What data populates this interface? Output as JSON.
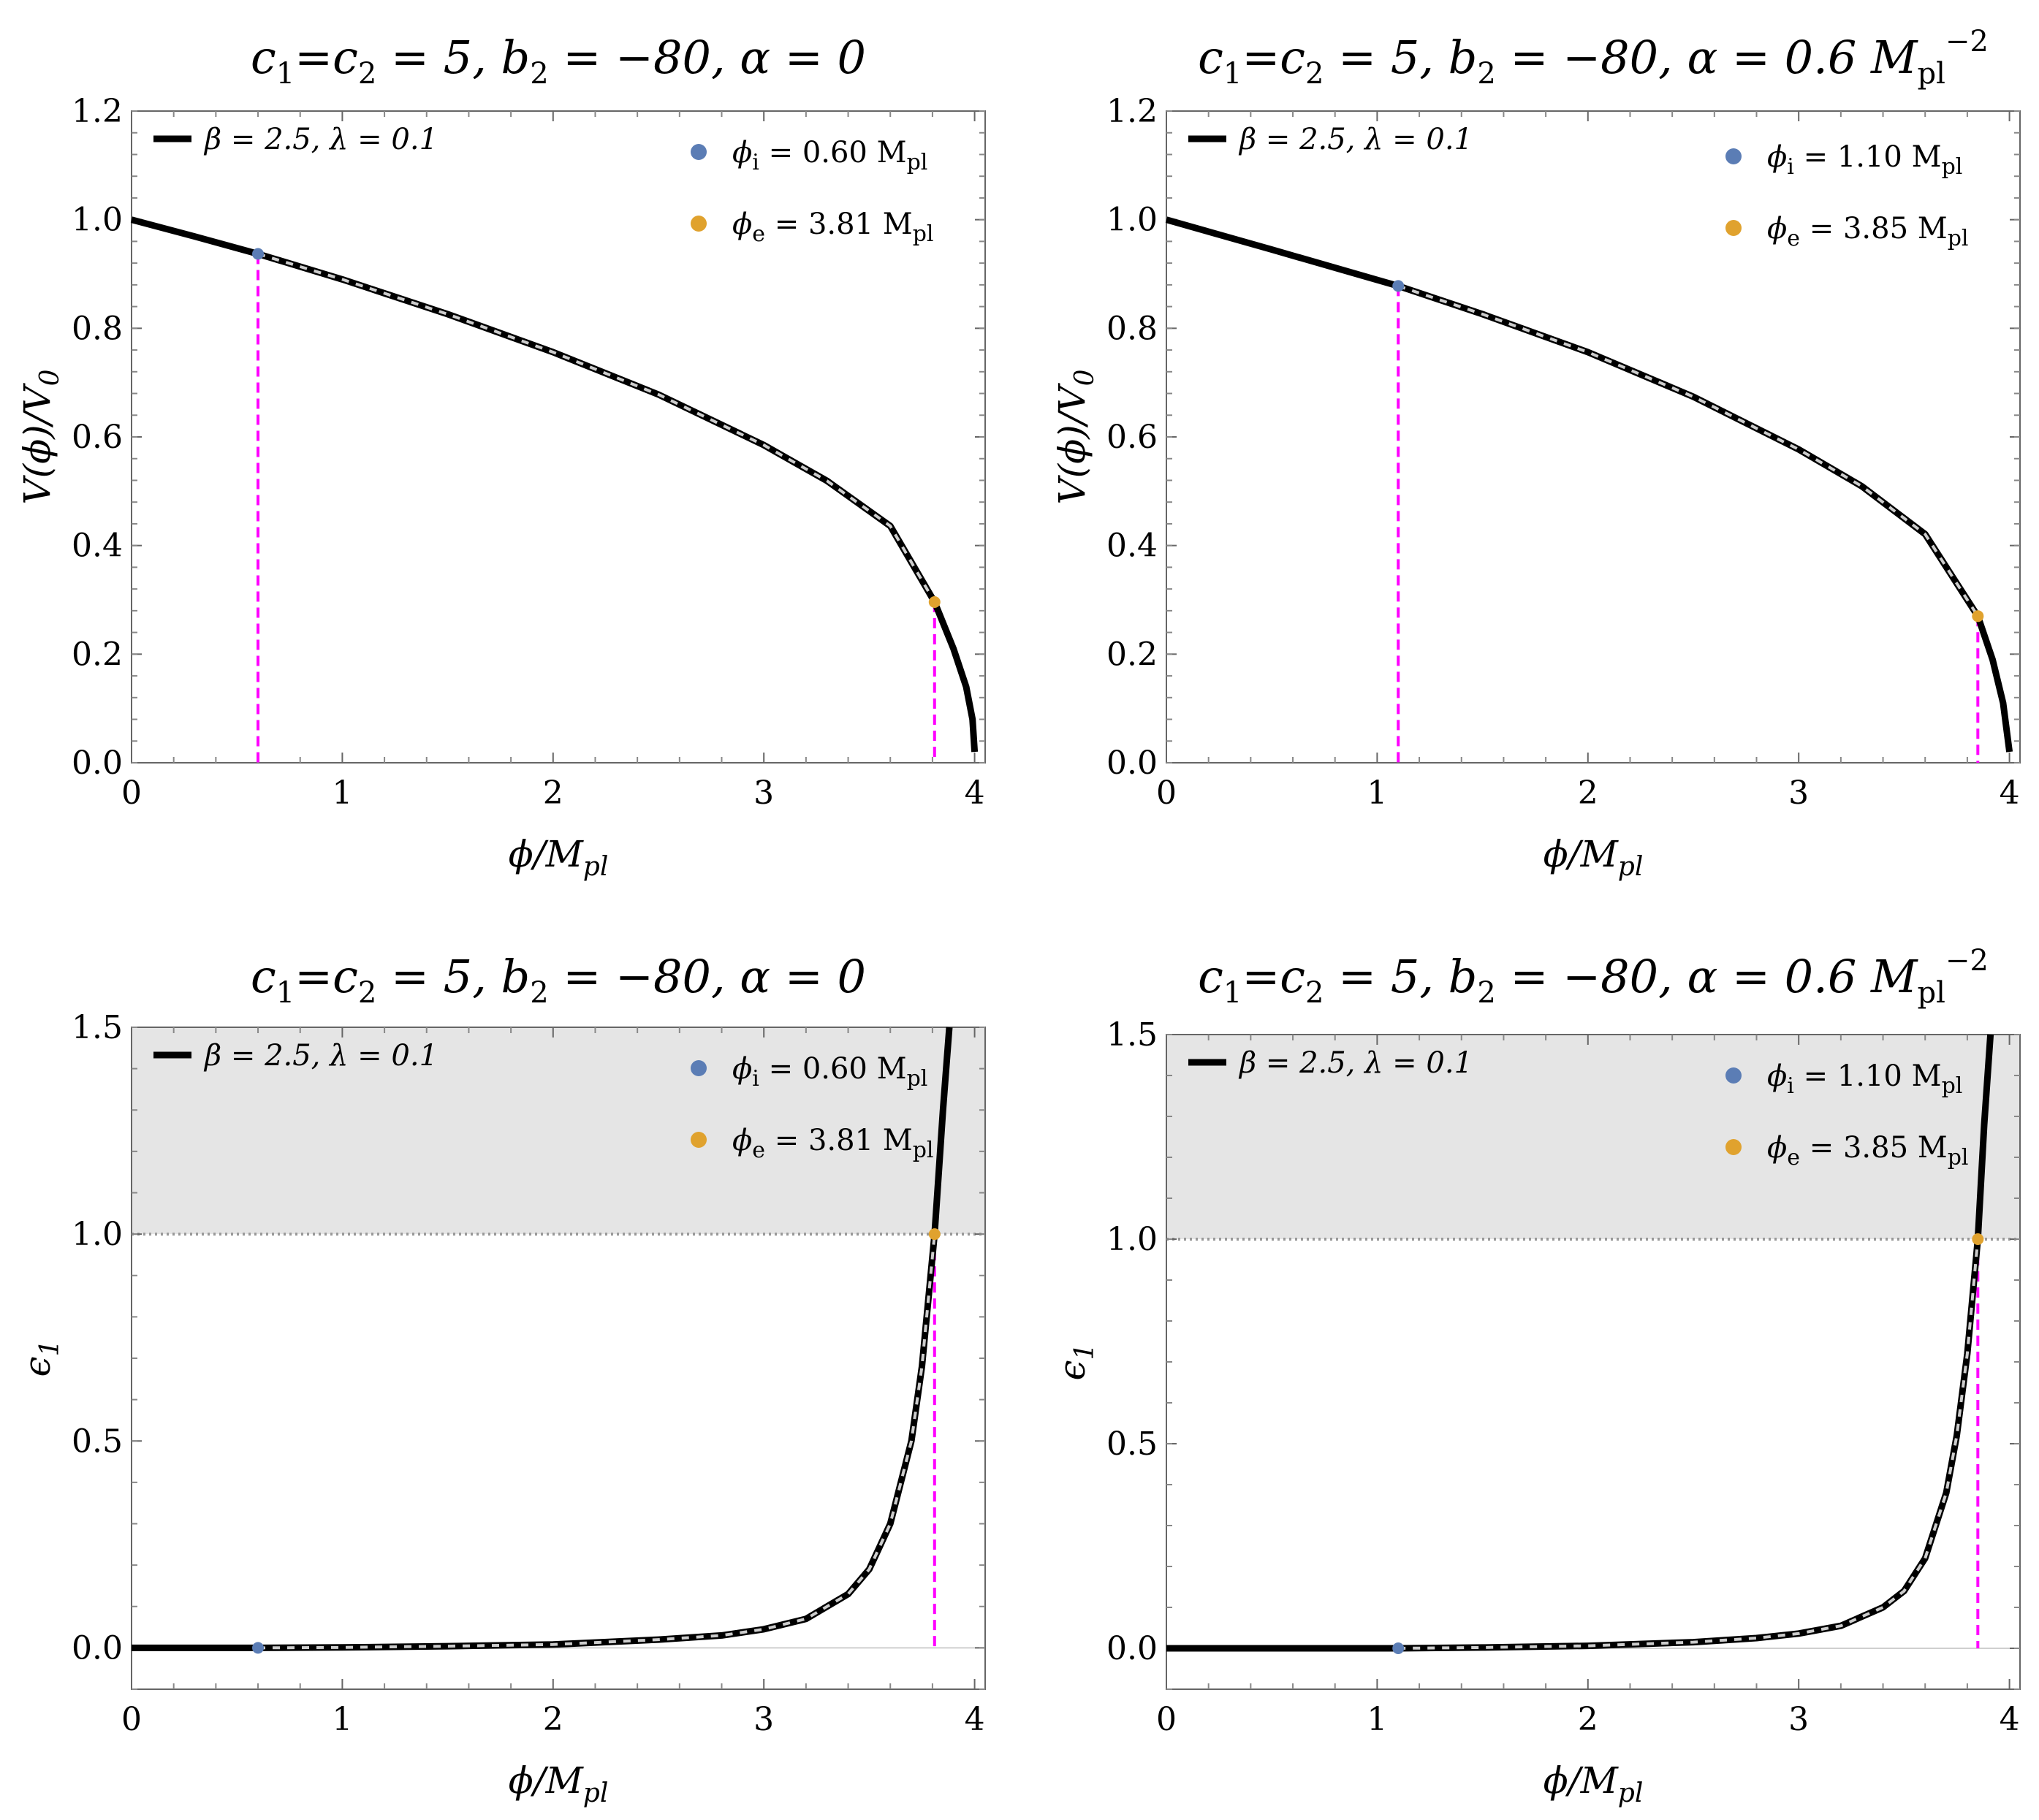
{
  "chart_data": [
    {
      "type": "line",
      "title": {
        "lhs": "c",
        "sub1": "1",
        "eq1": "=c",
        "sub2": "2",
        "mid": " = 5, b",
        "sub3": "2",
        "rest": " = −80, α = 0",
        "unit": "",
        "unit_sub": "",
        "unit_sup": ""
      },
      "xlabel": {
        "main": "ϕ/M",
        "sub": "pl"
      },
      "ylabel": {
        "main": "V(ϕ)/V",
        "sub": "0"
      },
      "xlim": [
        0,
        4.05
      ],
      "ylim": [
        0,
        1.2
      ],
      "xticks": [
        "0",
        "1",
        "2",
        "3",
        "4"
      ],
      "yticks": [
        "0.0",
        "0.2",
        "0.4",
        "0.6",
        "0.8",
        "1.0",
        "1.2"
      ],
      "legend": {
        "line_label": "β = 2.5, λ = 0.1",
        "phi_i_label": "ϕ",
        "phi_i_sub": "i",
        "phi_i_value": " = 0.60 M",
        "phi_i_unit_sub": "pl",
        "phi_e_label": "ϕ",
        "phi_e_sub": "e",
        "phi_e_value": " = 3.81 M",
        "phi_e_unit_sub": "pl"
      },
      "series": [
        {
          "name": "β = 2.5, λ = 0.1",
          "x": [
            0,
            0.3,
            0.6,
            1.0,
            1.5,
            2.0,
            2.5,
            3.0,
            3.3,
            3.6,
            3.81,
            3.9,
            3.96,
            3.99,
            4.0
          ],
          "y": [
            1.0,
            0.969,
            0.937,
            0.89,
            0.826,
            0.756,
            0.678,
            0.585,
            0.519,
            0.436,
            0.296,
            0.21,
            0.14,
            0.08,
            0.02
          ]
        }
      ],
      "phi_i": 0.6,
      "phi_e": 3.81,
      "V_i": 0.937,
      "V_e": 0.296,
      "shaded_region": null,
      "colors": {
        "curve": "#000000",
        "overlay": "#cccccc",
        "phi_i": "#5b7db5",
        "phi_e": "#e0a22e",
        "marker_line": "#ff00ff",
        "shade": "#e5e5e5"
      }
    },
    {
      "type": "line",
      "title": {
        "lhs": "c",
        "sub1": "1",
        "eq1": "=c",
        "sub2": "2",
        "mid": " = 5, b",
        "sub3": "2",
        "rest": " = −80, α = 0.6 ",
        "unit": "M",
        "unit_sub": "pl",
        "unit_sup": "−2"
      },
      "xlabel": {
        "main": "ϕ/M",
        "sub": "pl"
      },
      "ylabel": {
        "main": "V(ϕ)/V",
        "sub": "0"
      },
      "xlim": [
        0,
        4.05
      ],
      "ylim": [
        0,
        1.2
      ],
      "xticks": [
        "0",
        "1",
        "2",
        "3",
        "4"
      ],
      "yticks": [
        "0.0",
        "0.2",
        "0.4",
        "0.6",
        "0.8",
        "1.0",
        "1.2"
      ],
      "legend": {
        "line_label": "β = 2.5, λ = 0.1",
        "phi_i_label": "ϕ",
        "phi_i_sub": "i",
        "phi_i_value": " = 1.10 M",
        "phi_i_unit_sub": "pl",
        "phi_e_label": "ϕ",
        "phi_e_sub": "e",
        "phi_e_value": " = 3.85 M",
        "phi_e_unit_sub": "pl"
      },
      "series": [
        {
          "name": "β = 2.5, λ = 0.1",
          "x": [
            0,
            0.5,
            1.1,
            1.5,
            2.0,
            2.5,
            3.0,
            3.3,
            3.6,
            3.85,
            3.92,
            3.97,
            4.0
          ],
          "y": [
            1.0,
            0.945,
            0.878,
            0.826,
            0.756,
            0.674,
            0.577,
            0.509,
            0.421,
            0.27,
            0.19,
            0.11,
            0.02
          ]
        }
      ],
      "phi_i": 1.1,
      "phi_e": 3.85,
      "V_i": 0.878,
      "V_e": 0.27,
      "shaded_region": null,
      "colors": {
        "curve": "#000000",
        "overlay": "#cccccc",
        "phi_i": "#5b7db5",
        "phi_e": "#e0a22e",
        "marker_line": "#ff00ff",
        "shade": "#e5e5e5"
      }
    },
    {
      "type": "line",
      "title": {
        "lhs": "c",
        "sub1": "1",
        "eq1": "=c",
        "sub2": "2",
        "mid": " = 5, b",
        "sub3": "2",
        "rest": " = −80, α = 0",
        "unit": "",
        "unit_sub": "",
        "unit_sup": ""
      },
      "xlabel": {
        "main": "ϕ/M",
        "sub": "pl"
      },
      "ylabel": {
        "main": "ϵ",
        "sub": "1"
      },
      "xlim": [
        0,
        4.05
      ],
      "ylim": [
        -0.1,
        1.5
      ],
      "xticks": [
        "0",
        "1",
        "2",
        "3",
        "4"
      ],
      "yticks": [
        "0.0",
        "0.5",
        "1.0",
        "1.5"
      ],
      "legend": {
        "line_label": "β = 2.5, λ = 0.1",
        "phi_i_label": "ϕ",
        "phi_i_sub": "i",
        "phi_i_value": " = 0.60 M",
        "phi_i_unit_sub": "pl",
        "phi_e_label": "ϕ",
        "phi_e_sub": "e",
        "phi_e_value": " = 3.81 M",
        "phi_e_unit_sub": "pl"
      },
      "series": [
        {
          "name": "β = 2.5, λ = 0.1",
          "x": [
            0,
            0.6,
            1.0,
            1.5,
            2.0,
            2.5,
            2.8,
            3.0,
            3.2,
            3.4,
            3.5,
            3.6,
            3.7,
            3.75,
            3.81,
            3.85,
            3.88
          ],
          "y": [
            0.0,
            0.0,
            0.001,
            0.004,
            0.008,
            0.02,
            0.03,
            0.045,
            0.07,
            0.13,
            0.19,
            0.3,
            0.5,
            0.68,
            1.0,
            1.3,
            1.5
          ]
        }
      ],
      "phi_i": 0.6,
      "phi_e": 3.81,
      "eps_i": 0.0,
      "eps_e": 1.0,
      "shaded_region": {
        "ymin": 1.0,
        "ymax": 1.5
      },
      "colors": {
        "curve": "#000000",
        "overlay": "#cccccc",
        "phi_i": "#5b7db5",
        "phi_e": "#e0a22e",
        "marker_line": "#ff00ff",
        "shade": "#e5e5e5"
      }
    },
    {
      "type": "line",
      "title": {
        "lhs": "c",
        "sub1": "1",
        "eq1": "=c",
        "sub2": "2",
        "mid": " = 5, b",
        "sub3": "2",
        "rest": " = −80, α = 0.6 ",
        "unit": "M",
        "unit_sub": "pl",
        "unit_sup": "−2"
      },
      "xlabel": {
        "main": "ϕ/M",
        "sub": "pl"
      },
      "ylabel": {
        "main": "ϵ",
        "sub": "1"
      },
      "xlim": [
        0,
        4.05
      ],
      "ylim": [
        -0.1,
        1.5
      ],
      "xticks": [
        "0",
        "1",
        "2",
        "3",
        "4"
      ],
      "yticks": [
        "0.0",
        "0.5",
        "1.0",
        "1.5"
      ],
      "legend": {
        "line_label": "β = 2.5, λ = 0.1",
        "phi_i_label": "ϕ",
        "phi_i_sub": "i",
        "phi_i_value": " = 1.10 M",
        "phi_i_unit_sub": "pl",
        "phi_e_label": "ϕ",
        "phi_e_sub": "e",
        "phi_e_value": " = 3.85 M",
        "phi_e_unit_sub": "pl"
      },
      "series": [
        {
          "name": "β = 2.5, λ = 0.1",
          "x": [
            0,
            1.1,
            1.5,
            2.0,
            2.5,
            2.8,
            3.0,
            3.2,
            3.4,
            3.5,
            3.6,
            3.7,
            3.75,
            3.8,
            3.85,
            3.88,
            3.91
          ],
          "y": [
            0.0,
            0.0,
            0.002,
            0.006,
            0.015,
            0.025,
            0.036,
            0.055,
            0.1,
            0.14,
            0.22,
            0.38,
            0.52,
            0.72,
            1.0,
            1.28,
            1.5
          ]
        }
      ],
      "phi_i": 1.1,
      "phi_e": 3.85,
      "eps_i": 0.0,
      "eps_e": 1.0,
      "shaded_region": {
        "ymin": 1.0,
        "ymax": 1.5
      },
      "colors": {
        "curve": "#000000",
        "overlay": "#cccccc",
        "phi_i": "#5b7db5",
        "phi_e": "#e0a22e",
        "marker_line": "#ff00ff",
        "shade": "#e5e5e5"
      }
    }
  ]
}
